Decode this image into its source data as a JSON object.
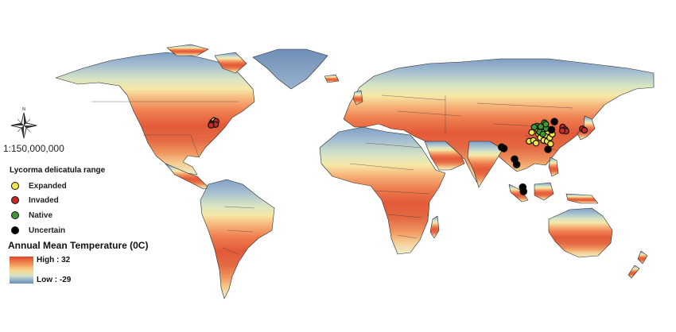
{
  "scale": "1:150,000,000",
  "legend": {
    "title": "Lycorma delicatula range",
    "items": [
      {
        "label": "Expanded",
        "color": "#f2e84b"
      },
      {
        "label": "Invaded",
        "color": "#c8282a"
      },
      {
        "label": "Native",
        "color": "#3f9a35"
      },
      {
        "label": "Uncertain",
        "color": "#000000"
      }
    ]
  },
  "temperature": {
    "title": "Annual Mean Temperature (0C)",
    "high_label": "High : 32",
    "low_label": "Low : -29",
    "colors": [
      "#e0472f",
      "#f08a52",
      "#f9d38c",
      "#d9e4c4",
      "#9ab6cc",
      "#6a8fb8"
    ]
  },
  "map_points": {
    "expanded": [
      [
        -76.8,
        40.2
      ],
      [
        -75.8,
        41.2
      ],
      [
        107.5,
        29.5
      ],
      [
        109.0,
        34.5
      ],
      [
        110.0,
        30.0
      ],
      [
        111.5,
        28.5
      ],
      [
        113.0,
        33.5
      ],
      [
        114.0,
        31.5
      ],
      [
        115.0,
        35.5
      ],
      [
        116.0,
        30.0
      ],
      [
        117.0,
        33.0
      ],
      [
        118.0,
        29.5
      ],
      [
        118.5,
        35.0
      ],
      [
        119.5,
        31.5
      ],
      [
        120.0,
        28.0
      ],
      [
        116.0,
        37.5
      ],
      [
        112.5,
        36.5
      ],
      [
        121.0,
        33.5
      ]
    ],
    "invaded": [
      [
        -75.5,
        39.8
      ],
      [
        -76.4,
        39.0
      ],
      [
        -77.3,
        39.2
      ],
      [
        -74.6,
        40.7
      ],
      [
        -75.0,
        38.9
      ],
      [
        -77.6,
        38.5
      ],
      [
        127.0,
        37.5
      ],
      [
        128.5,
        36.0
      ],
      [
        129.0,
        35.2
      ],
      [
        126.8,
        35.5
      ],
      [
        138.5,
        36.5
      ],
      [
        139.7,
        35.7
      ]
    ],
    "native": [
      [
        112.0,
        38.0
      ],
      [
        114.3,
        37.8
      ],
      [
        116.4,
        39.9
      ],
      [
        117.5,
        36.7
      ],
      [
        113.6,
        34.7
      ],
      [
        110.5,
        37.5
      ],
      [
        115.5,
        33.5
      ],
      [
        117.2,
        39.1
      ]
    ],
    "uncertain": [
      [
        91.5,
        26.2
      ],
      [
        92.8,
        25.5
      ],
      [
        99.0,
        19.5
      ],
      [
        100.2,
        16.5
      ],
      [
        103.8,
        3.8
      ],
      [
        104.2,
        1.4
      ],
      [
        118.5,
        25.0
      ],
      [
        120.5,
        36.0
      ],
      [
        122.2,
        40.5
      ]
    ]
  }
}
